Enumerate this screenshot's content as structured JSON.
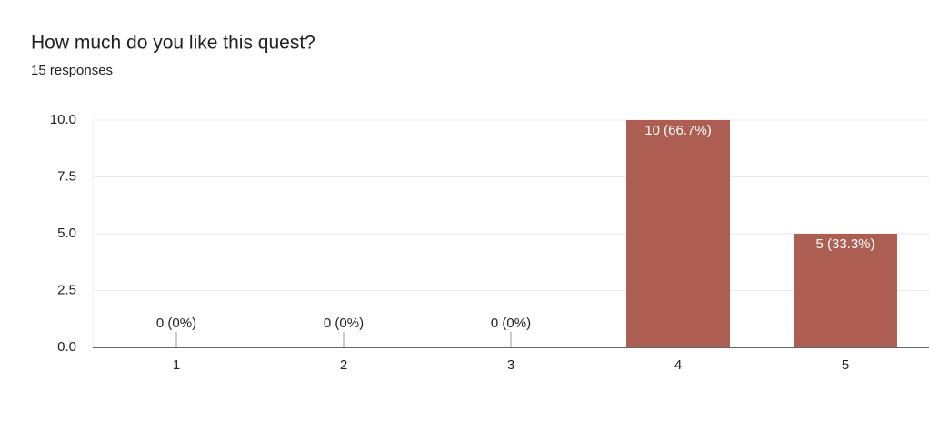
{
  "chart_data": {
    "type": "bar",
    "title": "How much do you like this quest?",
    "subtitle": "15 responses",
    "categories": [
      "1",
      "2",
      "3",
      "4",
      "5"
    ],
    "values": [
      0,
      0,
      0,
      10,
      5
    ],
    "value_labels": [
      "0 (0%)",
      "0 (0%)",
      "0 (0%)",
      "10 (66.7%)",
      "5 (33.3%)"
    ],
    "color": "#ab5e51",
    "ylim": [
      0,
      10
    ],
    "yticks": [
      {
        "value": 0,
        "label": "0.0"
      },
      2.5,
      {
        "value": 5,
        "label": "5.0"
      },
      7.5,
      {
        "value": 10,
        "label": "10.0"
      }
    ],
    "grid": true
  }
}
